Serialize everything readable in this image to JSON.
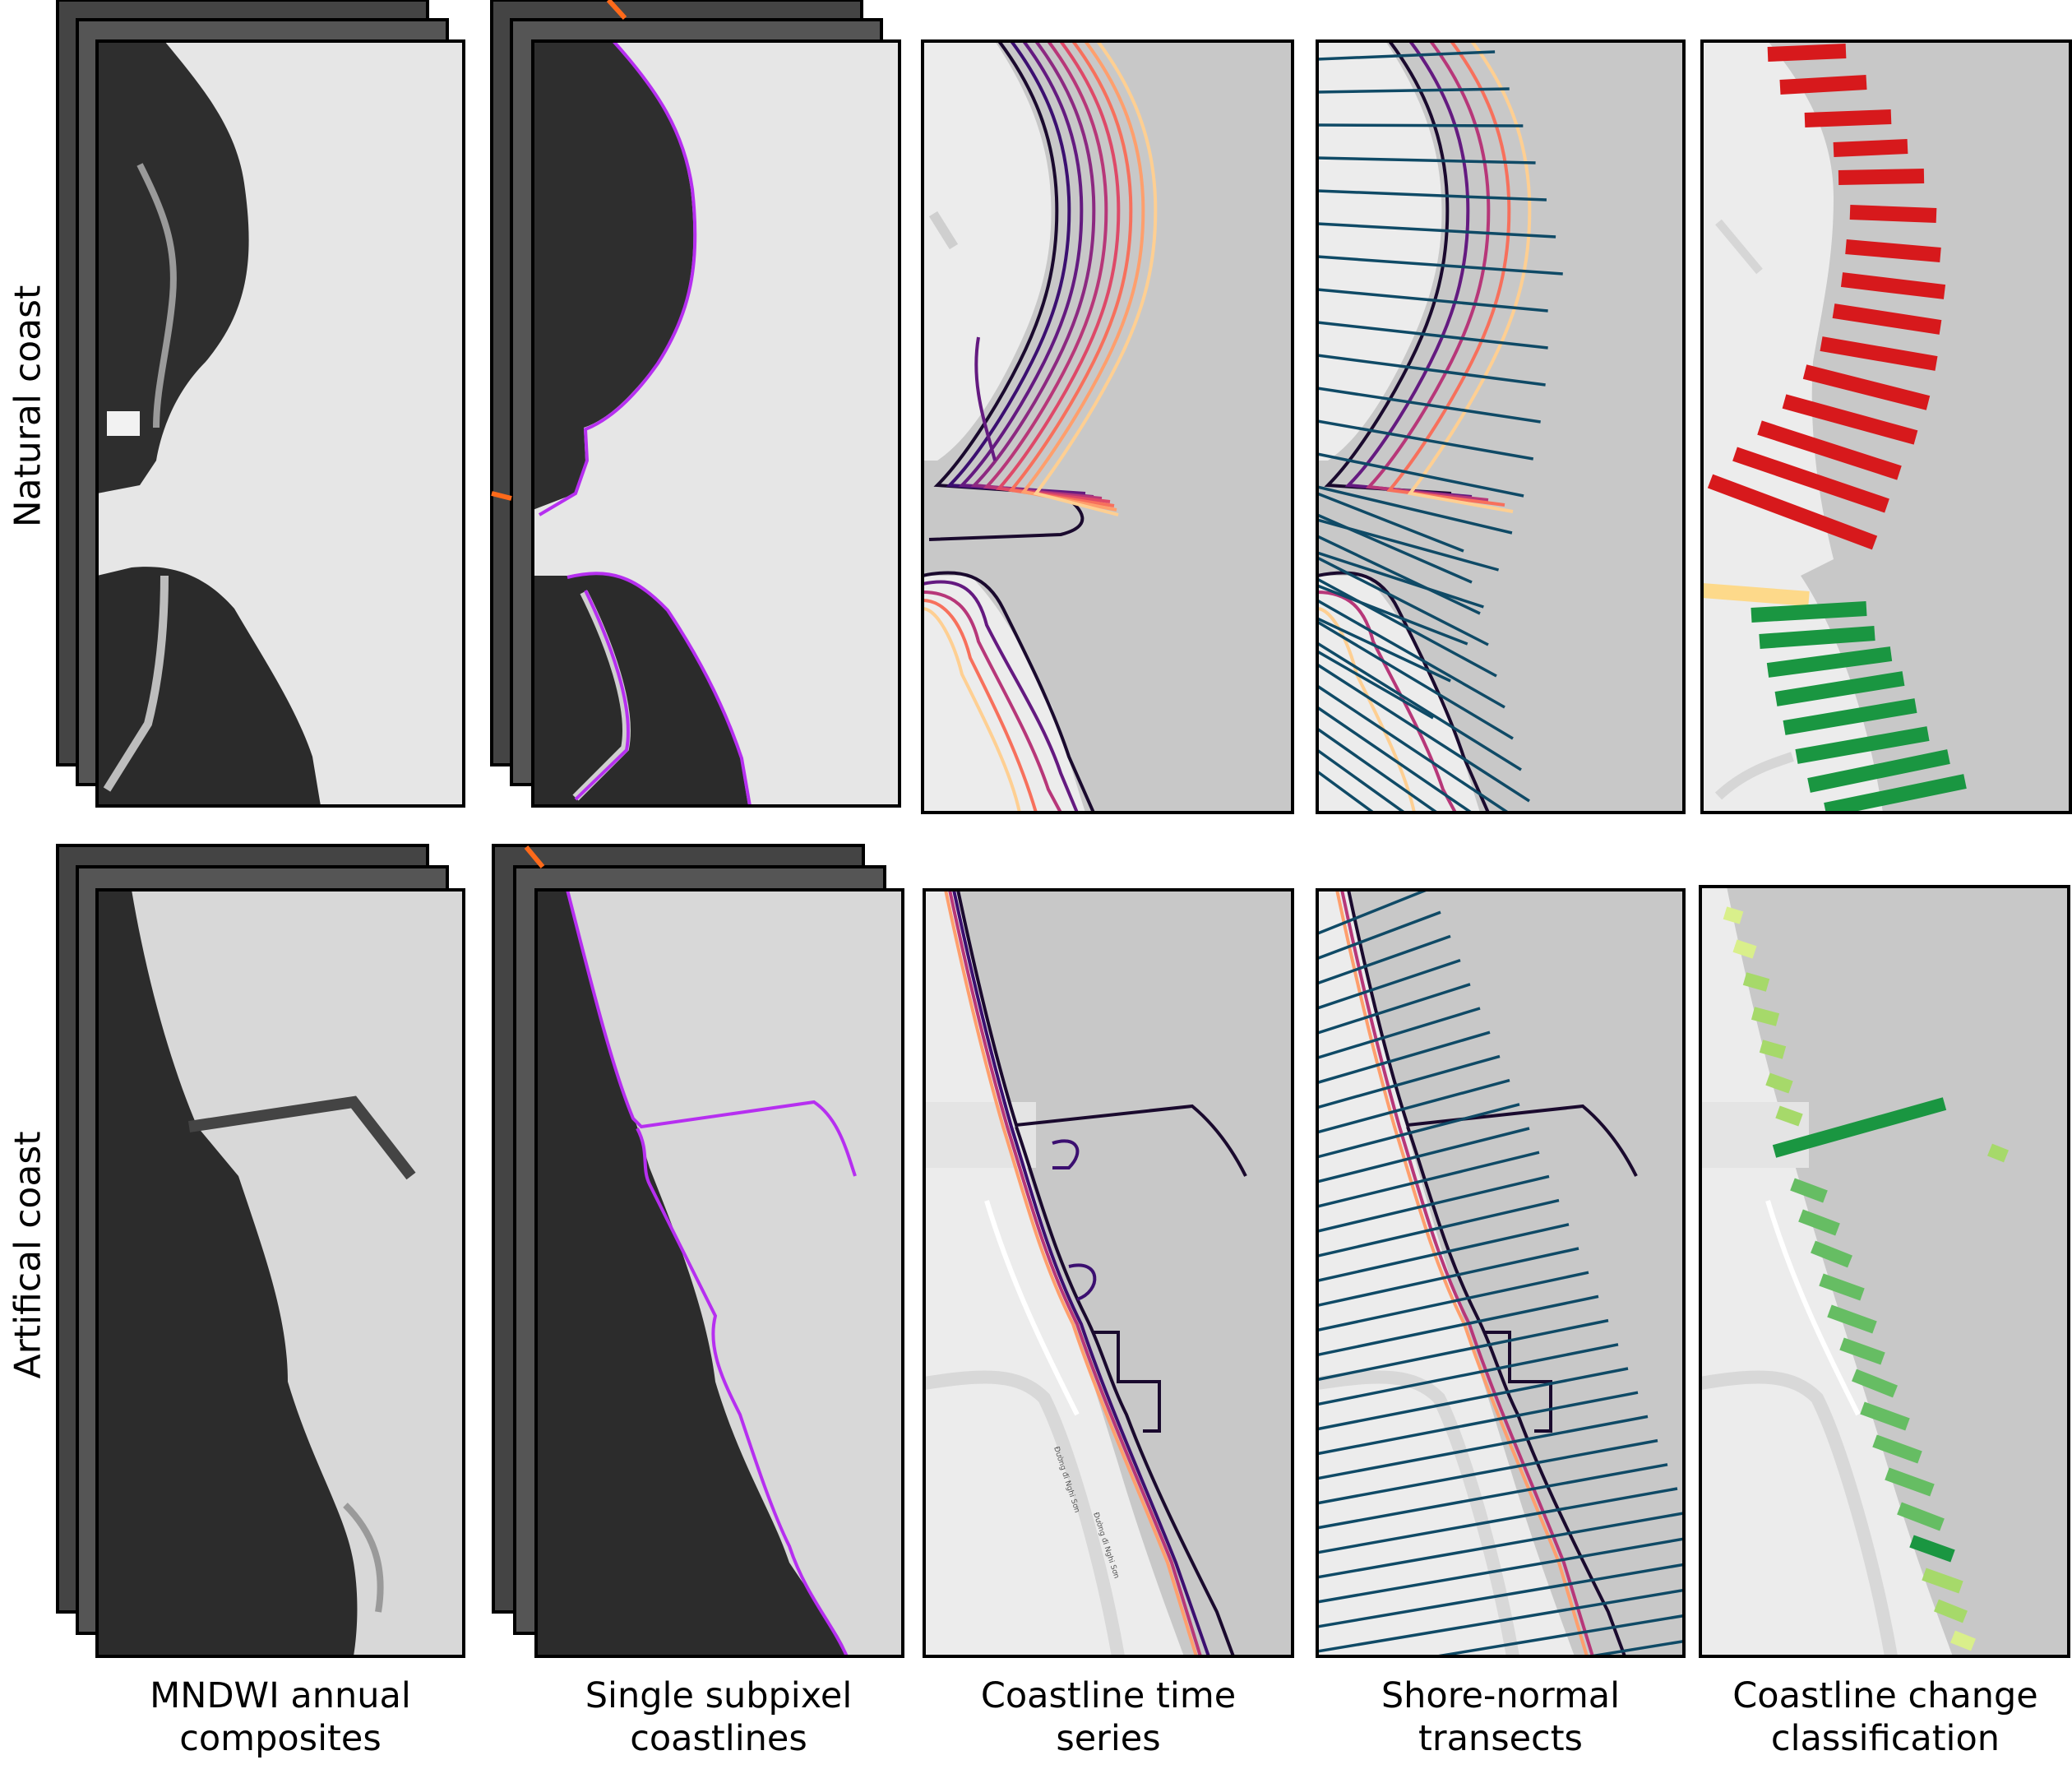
{
  "row_labels": {
    "natural": "Natural coast",
    "artificial": "Artifical coast"
  },
  "column_labels": [
    {
      "line1": "MNDWI annual",
      "line2": "composites"
    },
    {
      "line1": "Single subpixel",
      "line2": "coastlines"
    },
    {
      "line1": "Coastline time",
      "line2": "series"
    },
    {
      "line1": "Shore-normal",
      "line2": "transects"
    },
    {
      "line1": "Coastline change",
      "line2": "classification"
    }
  ],
  "map_labels": {
    "road_name_1": "Đường đi Nghi Sơn",
    "road_name_2": "Đường đi Nghi Sơn"
  },
  "colors": {
    "coastline_purple": "#b62ff0",
    "transect": "#0f4a66",
    "retreat": "#d7191c",
    "growth_dark": "#1a9641",
    "growth_light": "#a6d96a",
    "neutral": "#fdd98a",
    "water_grey": "#c8c8c8",
    "land_grey": "#ececec"
  }
}
